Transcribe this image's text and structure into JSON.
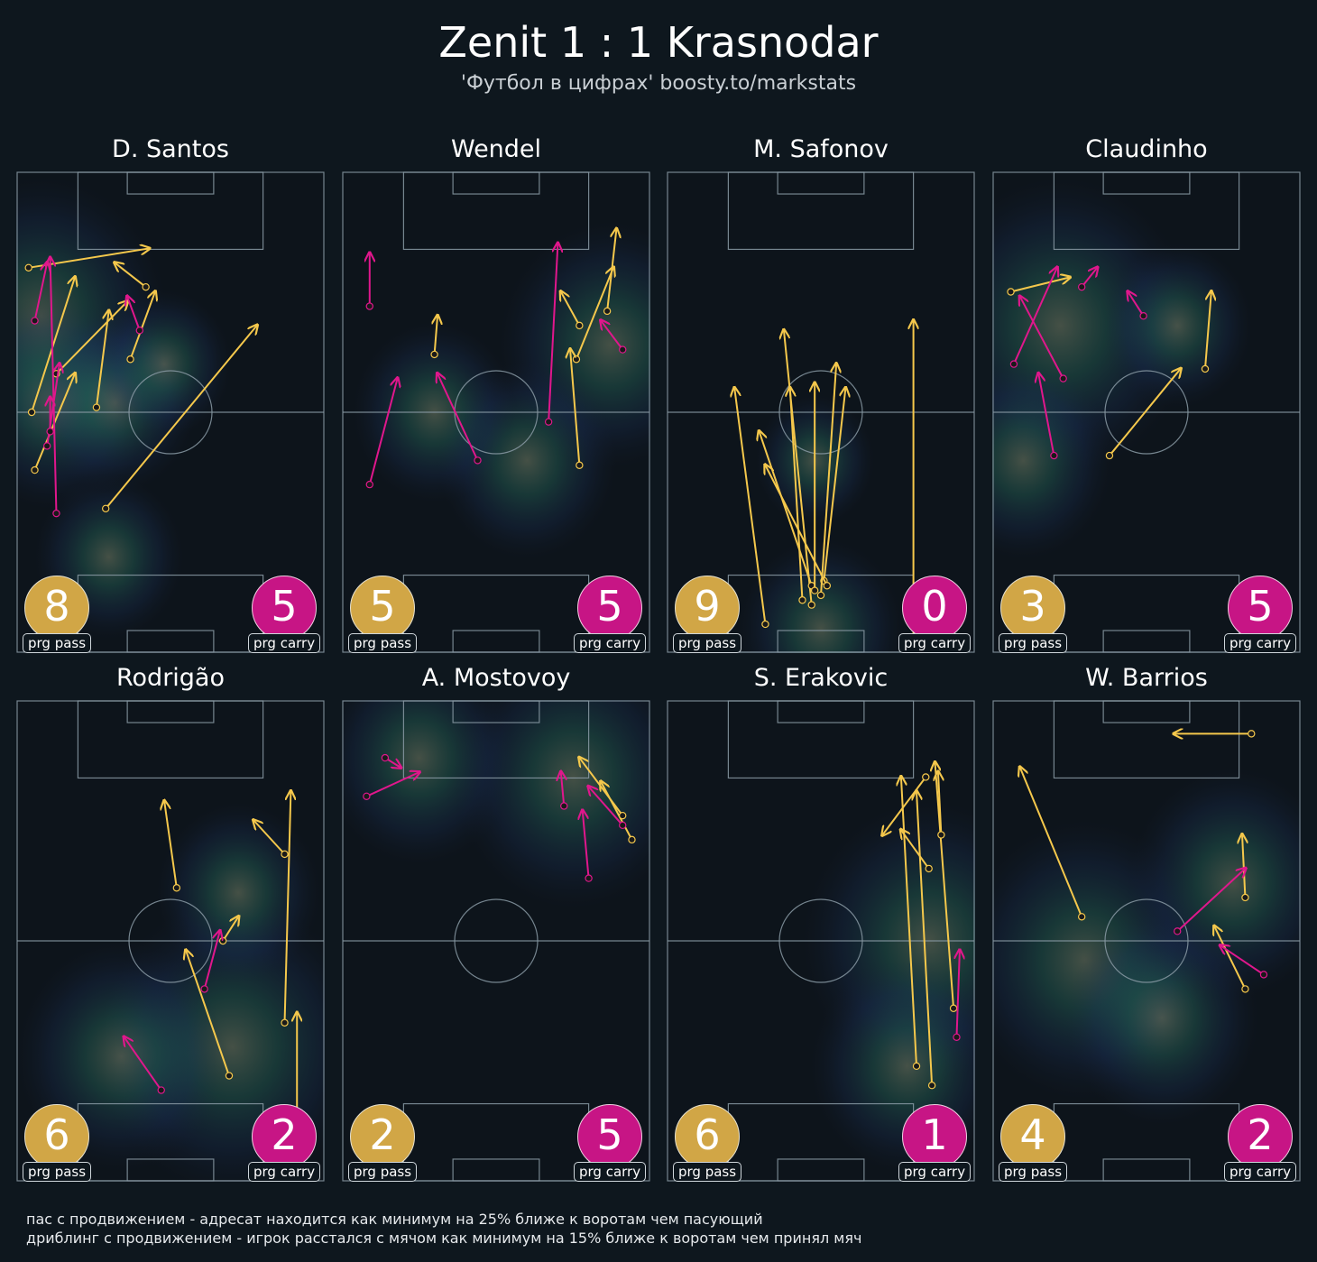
{
  "header": {
    "title": "Zenit 1 : 1 Krasnodar",
    "subtitle": "'Футбол в цифрах' boosty.to/markstats"
  },
  "legend_labels": {
    "pass": "prg pass",
    "carry": "prg carry"
  },
  "colors": {
    "background": "#0e171e",
    "pass": "#f5c84c",
    "carry": "#e0178c",
    "pass_badge": "#d1a646",
    "carry_badge": "#c71585",
    "pitch_lines": "#8a9aa4"
  },
  "footnotes": [
    "пас с продвижением - адресат находится как минимум на 25% ближе к воротам чем пасующий",
    "дриблинг с продвижением - игрок расстался с мячом как минимум на 15% ближе к воротам чем принял мяч"
  ],
  "chart_data": [
    {
      "type": "scatter",
      "title": "D. Santos",
      "prg_pass": "8",
      "prg_carry": "5",
      "heat": [
        [
          8,
          70,
          34
        ],
        [
          12,
          52,
          26
        ],
        [
          32,
          52,
          22
        ],
        [
          30,
          20,
          20
        ],
        [
          48,
          60,
          18
        ]
      ],
      "passes": [
        [
          4,
          80,
          43,
          84
        ],
        [
          5,
          50,
          19,
          78
        ],
        [
          6,
          38,
          19,
          58
        ],
        [
          26,
          51,
          30,
          71
        ],
        [
          42,
          76,
          32,
          81
        ],
        [
          29,
          30,
          78,
          68
        ],
        [
          37,
          61,
          45,
          75
        ],
        [
          13,
          58,
          36,
          73
        ]
      ],
      "carries": [
        [
          10,
          43,
          14,
          60
        ],
        [
          13,
          29,
          11,
          82
        ],
        [
          11,
          46,
          11,
          53
        ],
        [
          6,
          69,
          10,
          81
        ],
        [
          40,
          67,
          36,
          74
        ]
      ]
    },
    {
      "type": "scatter",
      "title": "Wendel",
      "prg_pass": "5",
      "prg_carry": "5",
      "heat": [
        [
          87,
          64,
          30
        ],
        [
          60,
          40,
          24
        ],
        [
          30,
          50,
          22
        ]
      ],
      "passes": [
        [
          30,
          62,
          31,
          70
        ],
        [
          76,
          61,
          88,
          80
        ],
        [
          77,
          68,
          71,
          75
        ],
        [
          86,
          71,
          89,
          88
        ],
        [
          77,
          39,
          74,
          63
        ]
      ],
      "carries": [
        [
          44,
          40,
          31,
          58
        ],
        [
          67,
          48,
          70,
          85
        ],
        [
          9,
          72,
          9,
          83
        ],
        [
          91,
          63,
          84,
          69
        ],
        [
          9,
          35,
          18,
          57
        ]
      ]
    },
    {
      "type": "scatter",
      "title": "M. Safonov",
      "prg_pass": "9",
      "prg_carry": "0",
      "heat": [
        [
          50,
          5,
          22
        ],
        [
          48,
          40,
          16
        ]
      ],
      "passes": [
        [
          47,
          10,
          38,
          67
        ],
        [
          32,
          6,
          22,
          55
        ],
        [
          51,
          15,
          58,
          55
        ],
        [
          50,
          12,
          55,
          60
        ],
        [
          47,
          14,
          30,
          46
        ],
        [
          52,
          14,
          32,
          39
        ],
        [
          44,
          11,
          40,
          55
        ],
        [
          48,
          13,
          48,
          56
        ],
        [
          80,
          3,
          80,
          69
        ]
      ],
      "carries": []
    },
    {
      "type": "scatter",
      "title": "Claudinho",
      "prg_pass": "3",
      "prg_carry": "5",
      "heat": [
        [
          22,
          68,
          36
        ],
        [
          10,
          40,
          24
        ],
        [
          60,
          68,
          20
        ]
      ],
      "passes": [
        [
          6,
          75,
          25,
          78
        ],
        [
          69,
          59,
          71,
          75
        ],
        [
          38,
          41,
          61,
          59
        ]
      ],
      "carries": [
        [
          7,
          60,
          21,
          80
        ],
        [
          23,
          57,
          9,
          74
        ],
        [
          20,
          41,
          15,
          58
        ],
        [
          29,
          76,
          34,
          80
        ],
        [
          49,
          70,
          44,
          75
        ]
      ]
    },
    {
      "type": "scatter",
      "title": "Rodrigão",
      "prg_pass": "6",
      "prg_carry": "2",
      "heat": [
        [
          70,
          28,
          36
        ],
        [
          34,
          26,
          28
        ],
        [
          72,
          60,
          22
        ]
      ],
      "passes": [
        [
          52,
          61,
          48,
          79
        ],
        [
          87,
          68,
          77,
          75
        ],
        [
          69,
          22,
          55,
          48
        ],
        [
          87,
          33,
          89,
          81
        ],
        [
          91,
          3,
          91,
          35
        ],
        [
          67,
          50,
          72,
          55
        ]
      ],
      "carries": [
        [
          47,
          19,
          35,
          30
        ],
        [
          61,
          40,
          66,
          52
        ]
      ]
    },
    {
      "type": "scatter",
      "title": "A. Mostovoy",
      "prg_pass": "2",
      "prg_carry": "5",
      "heat": [
        [
          75,
          84,
          32
        ],
        [
          25,
          88,
          26
        ]
      ],
      "passes": [
        [
          94,
          71,
          84,
          83
        ],
        [
          91,
          76,
          77,
          88
        ]
      ],
      "carries": [
        [
          80,
          63,
          78,
          77
        ],
        [
          72,
          78,
          71,
          85
        ],
        [
          91,
          74,
          80,
          82
        ],
        [
          14,
          88,
          19,
          86
        ],
        [
          8,
          80,
          25,
          85
        ]
      ]
    },
    {
      "type": "scatter",
      "title": "S. Erakovic",
      "prg_pass": "6",
      "prg_carry": "1",
      "heat": [
        [
          85,
          50,
          34
        ],
        [
          78,
          24,
          26
        ]
      ],
      "passes": [
        [
          81,
          24,
          76,
          84
        ],
        [
          86,
          20,
          81,
          81
        ],
        [
          85,
          65,
          76,
          73
        ],
        [
          93,
          36,
          87,
          87
        ],
        [
          84,
          84,
          70,
          72
        ],
        [
          89,
          72,
          88,
          85
        ]
      ],
      "carries": [
        [
          94,
          30,
          95,
          48
        ]
      ]
    },
    {
      "type": "scatter",
      "title": "W. Barrios",
      "prg_pass": "4",
      "prg_carry": "2",
      "heat": [
        [
          30,
          46,
          34
        ],
        [
          78,
          62,
          28
        ],
        [
          55,
          34,
          26
        ]
      ],
      "passes": [
        [
          84,
          93,
          59,
          93
        ],
        [
          29,
          55,
          9,
          86
        ],
        [
          82,
          59,
          81,
          72
        ],
        [
          82,
          40,
          72,
          53
        ]
      ],
      "carries": [
        [
          60,
          52,
          82,
          65
        ],
        [
          88,
          43,
          74,
          49
        ]
      ]
    }
  ]
}
